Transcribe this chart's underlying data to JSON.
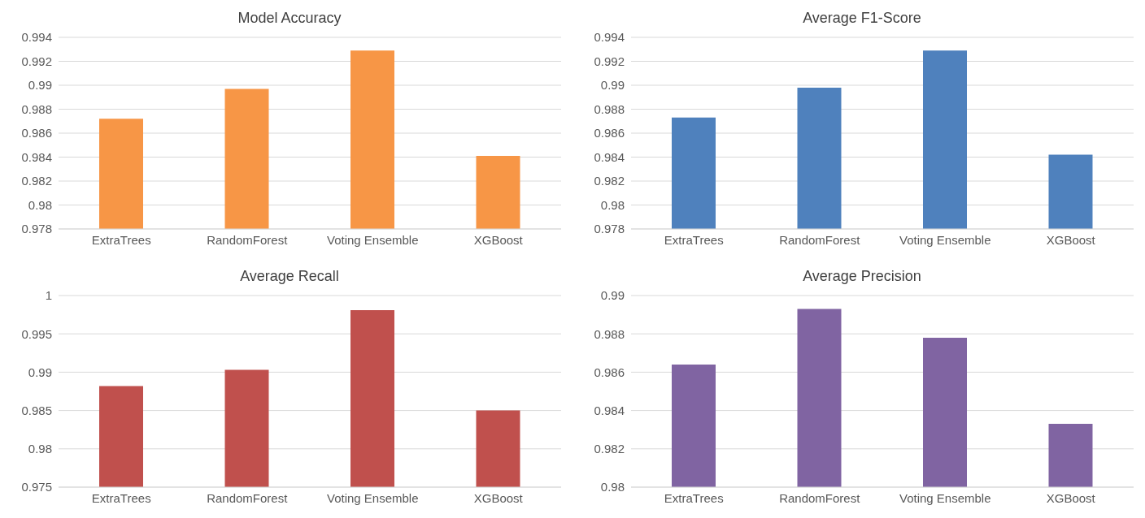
{
  "chart_data": [
    {
      "type": "bar",
      "title": "Model Accuracy",
      "categories": [
        "ExtraTrees",
        "RandomForest",
        "Voting Ensemble",
        "XGBoost"
      ],
      "values": [
        0.9872,
        0.9897,
        0.9929,
        0.9841
      ],
      "color": "#f79646",
      "ylim": [
        0.978,
        0.994
      ],
      "yticks": [
        0.978,
        0.98,
        0.982,
        0.984,
        0.986,
        0.988,
        0.99,
        0.992,
        0.994
      ],
      "grid": "y"
    },
    {
      "type": "bar",
      "title": "Average F1-Score",
      "categories": [
        "ExtraTrees",
        "RandomForest",
        "Voting Ensemble",
        "XGBoost"
      ],
      "values": [
        0.9873,
        0.9898,
        0.9929,
        0.9842
      ],
      "color": "#4f81bd",
      "ylim": [
        0.978,
        0.994
      ],
      "yticks": [
        0.978,
        0.98,
        0.982,
        0.984,
        0.986,
        0.988,
        0.99,
        0.992,
        0.994
      ],
      "grid": "y"
    },
    {
      "type": "bar",
      "title": "Average Recall",
      "categories": [
        "ExtraTrees",
        "RandomForest",
        "Voting Ensemble",
        "XGBoost"
      ],
      "values": [
        0.9882,
        0.9903,
        0.9981,
        0.985
      ],
      "color": "#c0504d",
      "ylim": [
        0.975,
        1
      ],
      "yticks": [
        0.975,
        0.98,
        0.985,
        0.99,
        0.995,
        1
      ],
      "grid": "y"
    },
    {
      "type": "bar",
      "title": "Average Precision",
      "categories": [
        "ExtraTrees",
        "RandomForest",
        "Voting Ensemble",
        "XGBoost"
      ],
      "values": [
        0.9864,
        0.9893,
        0.9878,
        0.9833
      ],
      "color": "#8064a2",
      "ylim": [
        0.98,
        0.99
      ],
      "yticks": [
        0.98,
        0.982,
        0.984,
        0.986,
        0.988,
        0.99
      ],
      "grid": "y"
    }
  ]
}
